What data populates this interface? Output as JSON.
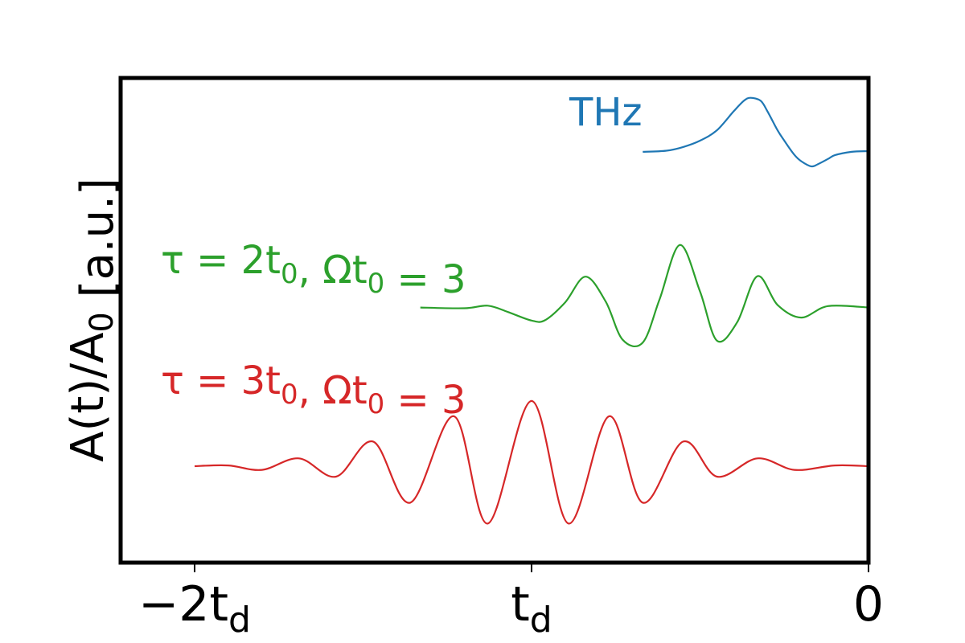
{
  "chart_data": {
    "type": "line",
    "title": "",
    "xlabel": "",
    "ylabel": "A(t)/A0 [a.u.]",
    "ylabel_parts": {
      "base": "A(t)/A",
      "sub": "0",
      "unit": "[a.u.]"
    },
    "xlim": [
      -2.22,
      0
    ],
    "ylim": [
      -0.25,
      1.04
    ],
    "grid": false,
    "legend": "none",
    "ticks": [
      {
        "value": -2,
        "main": "−2t",
        "sub": "d"
      },
      {
        "value": -1,
        "main": "t",
        "sub": "d"
      },
      {
        "value": 0,
        "main": "0",
        "sub": ""
      }
    ],
    "series": [
      {
        "name": "THz",
        "label_parts": [
          {
            "t": "THz",
            "sub": ""
          }
        ],
        "color": "#1f77b4",
        "x": [
          -0.67,
          -0.6,
          -0.55,
          -0.5,
          -0.45,
          -0.4,
          -0.37,
          -0.35,
          -0.32,
          -0.3,
          -0.27,
          -0.25,
          -0.22,
          -0.2,
          -0.17,
          -0.15,
          -0.12,
          -0.1,
          -0.05,
          0
        ],
        "y": [
          0.882,
          0.885,
          0.895,
          0.912,
          0.94,
          0.991,
          1.019,
          1.027,
          1.019,
          0.991,
          0.94,
          0.912,
          0.874,
          0.857,
          0.843,
          0.849,
          0.863,
          0.873,
          0.882,
          0.884
        ]
      },
      {
        "name": "τ = 2t0, Ωt0 = 3",
        "label_parts": [
          {
            "t": "τ = 2t",
            "sub": "0"
          },
          {
            "t": ", Ωt",
            "sub": "0"
          },
          {
            "t": " = 3",
            "sub": ""
          }
        ],
        "color": "#2ca02c",
        "x": [
          -1.33,
          -1.2,
          -1.13,
          -1.07,
          -1.0,
          -0.96,
          -0.9,
          -0.84,
          -0.78,
          -0.73,
          -0.67,
          -0.62,
          -0.56,
          -0.5,
          -0.45,
          -0.39,
          -0.33,
          -0.27,
          -0.2,
          -0.12,
          0
        ],
        "y": [
          0.464,
          0.462,
          0.469,
          0.452,
          0.429,
          0.43,
          0.478,
          0.547,
          0.48,
          0.378,
          0.37,
          0.486,
          0.632,
          0.507,
          0.375,
          0.424,
          0.548,
          0.471,
          0.437,
          0.468,
          0.464
        ]
      },
      {
        "name": "τ = 3t0, Ωt0 = 3",
        "label_parts": [
          {
            "t": "τ = 3t",
            "sub": "0"
          },
          {
            "t": ", Ωt",
            "sub": "0"
          },
          {
            "t": " = 3",
            "sub": ""
          }
        ],
        "color": "#d62728",
        "x": [
          -2.0,
          -1.9,
          -1.8,
          -1.69,
          -1.58,
          -1.47,
          -1.36,
          -1.23,
          -1.13,
          -1.0,
          -0.89,
          -0.77,
          -0.67,
          -0.55,
          -0.45,
          -0.33,
          -0.22,
          -0.1,
          0
        ],
        "y": [
          0.038,
          0.04,
          0.028,
          0.059,
          0.01,
          0.104,
          -0.06,
          0.172,
          -0.116,
          0.213,
          -0.116,
          0.172,
          -0.06,
          0.104,
          0.01,
          0.059,
          0.028,
          0.04,
          0.038
        ]
      }
    ]
  }
}
